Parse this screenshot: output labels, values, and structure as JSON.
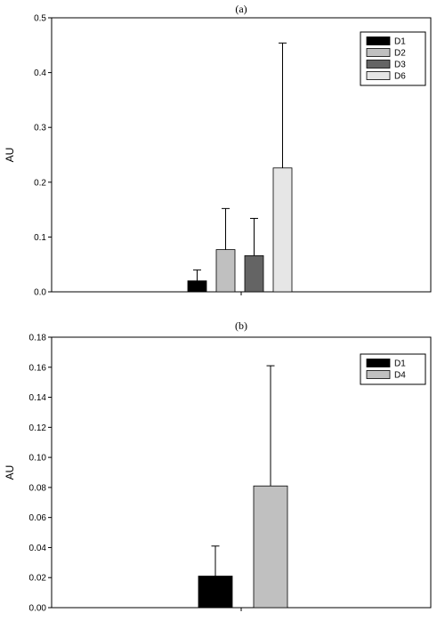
{
  "chart_data": [
    {
      "type": "bar",
      "title": "(a)",
      "xlabel": "",
      "ylabel": "AU",
      "ylim": [
        0,
        0.5
      ],
      "yticks": [
        "0.0",
        "0.1",
        "0.2",
        "0.3",
        "0.4",
        "0.5"
      ],
      "error_bars": "upper",
      "grid": false,
      "legend_position": "top-right",
      "series": [
        {
          "name": "D1",
          "value": 0.02,
          "error": 0.02,
          "color": "#000000"
        },
        {
          "name": "D2",
          "value": 0.077,
          "error": 0.075,
          "color": "#c0c0c0"
        },
        {
          "name": "D3",
          "value": 0.066,
          "error": 0.068,
          "color": "#646464"
        },
        {
          "name": "D6",
          "value": 0.226,
          "error": 0.228,
          "color": "#e6e6e6"
        }
      ]
    },
    {
      "type": "bar",
      "title": "(b)",
      "xlabel": "",
      "ylabel": "AU",
      "ylim": [
        0,
        0.18
      ],
      "yticks": [
        "0.00",
        "0.02",
        "0.04",
        "0.06",
        "0.08",
        "0.10",
        "0.12",
        "0.14",
        "0.16",
        "0.18"
      ],
      "error_bars": "upper",
      "grid": false,
      "legend_position": "top-right",
      "series": [
        {
          "name": "D1",
          "value": 0.021,
          "error": 0.02,
          "color": "#000000"
        },
        {
          "name": "D4",
          "value": 0.081,
          "error": 0.08,
          "color": "#c0c0c0"
        }
      ]
    }
  ]
}
